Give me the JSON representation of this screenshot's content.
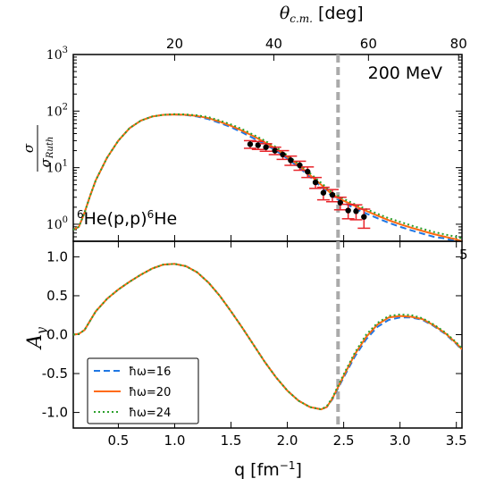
{
  "chart_data": [
    {
      "type": "line",
      "panel": "top",
      "x_bottom_unit": "q [fm⁻¹]",
      "x_top_label_symbol": "θ",
      "x_top_label_sub": "c.m.",
      "x_top_label_unit": "[deg]",
      "x_top_ticks": [
        20,
        40,
        60,
        80
      ],
      "x_top_tick_q": [
        1.0,
        1.88,
        2.72,
        3.52
      ],
      "ylabel_num": "σ",
      "ylabel_den": "σ",
      "ylabel_den_sub": "Ruth",
      "yscale": "log",
      "ylim": [
        0.5,
        1000
      ],
      "y_ticks": [
        {
          "value": 1,
          "base": "10",
          "exp": "0"
        },
        {
          "value": 10,
          "base": "10",
          "exp": "1"
        },
        {
          "value": 100,
          "base": "10",
          "exp": "2"
        },
        {
          "value": 1000,
          "base": "10",
          "exp": "3"
        }
      ],
      "xlim": [
        0.1,
        3.55
      ],
      "energy_label": "200 MeV",
      "reaction_label": {
        "pre": "6",
        "a": "He(p,p)",
        "mid": "6",
        "b": "He"
      },
      "right_edge_tick_label": "5",
      "vertical_marker_q": 2.45,
      "series": [
        {
          "hw": 16,
          "x": [
            0.1,
            0.15,
            0.2,
            0.25,
            0.3,
            0.4,
            0.5,
            0.6,
            0.7,
            0.8,
            0.9,
            1.0,
            1.1,
            1.2,
            1.3,
            1.4,
            1.5,
            1.6,
            1.7,
            1.8,
            1.9,
            2.0,
            2.1,
            2.2,
            2.3,
            2.4,
            2.5,
            2.6,
            2.7,
            2.8,
            2.9,
            3.0,
            3.1,
            3.2,
            3.3,
            3.4,
            3.5,
            3.55
          ],
          "y": [
            0.8,
            0.9,
            1.6,
            3.2,
            6.0,
            15,
            30,
            50,
            68,
            80,
            86,
            87,
            85,
            80,
            72,
            62,
            52,
            42,
            33,
            26,
            20,
            14.5,
            10.2,
            6.9,
            4.6,
            3.1,
            2.4,
            1.9,
            1.55,
            1.28,
            1.06,
            0.9,
            0.78,
            0.68,
            0.6,
            0.56,
            0.5,
            0.47
          ]
        },
        {
          "hw": 20,
          "x": [
            0.1,
            0.15,
            0.2,
            0.25,
            0.3,
            0.4,
            0.5,
            0.6,
            0.7,
            0.8,
            0.9,
            1.0,
            1.1,
            1.2,
            1.3,
            1.4,
            1.5,
            1.6,
            1.7,
            1.8,
            1.9,
            2.0,
            2.1,
            2.2,
            2.3,
            2.4,
            2.5,
            2.6,
            2.7,
            2.8,
            2.9,
            3.0,
            3.1,
            3.2,
            3.3,
            3.4,
            3.5,
            3.55
          ],
          "y": [
            0.8,
            0.9,
            1.6,
            3.2,
            6.0,
            15,
            30,
            50,
            68,
            80,
            86,
            87,
            86,
            82,
            75,
            65,
            55,
            45,
            36,
            28,
            21.5,
            15.5,
            11,
            7.4,
            5.0,
            3.35,
            2.6,
            2.1,
            1.72,
            1.42,
            1.18,
            1.0,
            0.87,
            0.76,
            0.67,
            0.6,
            0.54,
            0.5
          ]
        },
        {
          "hw": 24,
          "x": [
            0.1,
            0.15,
            0.2,
            0.25,
            0.3,
            0.4,
            0.5,
            0.6,
            0.7,
            0.8,
            0.9,
            1.0,
            1.1,
            1.2,
            1.3,
            1.4,
            1.5,
            1.6,
            1.7,
            1.8,
            1.9,
            2.0,
            2.1,
            2.2,
            2.3,
            2.4,
            2.5,
            2.6,
            2.7,
            2.8,
            2.9,
            3.0,
            3.1,
            3.2,
            3.3,
            3.4,
            3.5,
            3.55
          ],
          "y": [
            0.8,
            0.9,
            1.6,
            3.2,
            6.0,
            15,
            30,
            50,
            68,
            80,
            86,
            88,
            87,
            84,
            78,
            68,
            58,
            48,
            38,
            30,
            23,
            16.5,
            11.8,
            8.0,
            5.4,
            3.6,
            2.8,
            2.25,
            1.85,
            1.53,
            1.28,
            1.1,
            0.95,
            0.83,
            0.73,
            0.66,
            0.6,
            0.56
          ]
        }
      ],
      "experimental": {
        "x": [
          1.67,
          1.74,
          1.81,
          1.89,
          1.96,
          2.03,
          2.11,
          2.18,
          2.25,
          2.32,
          2.4,
          2.47,
          2.54,
          2.61,
          2.68
        ],
        "y": [
          26,
          25,
          23,
          20,
          17,
          13.5,
          11,
          8.5,
          5.5,
          3.6,
          3.3,
          2.4,
          1.75,
          1.7,
          1.35
        ],
        "yerr": [
          4,
          4,
          3.5,
          3,
          3,
          2.5,
          2,
          1.8,
          1.2,
          0.9,
          0.8,
          0.6,
          0.5,
          0.5,
          0.5
        ]
      }
    },
    {
      "type": "line",
      "panel": "bottom",
      "xlabel_base": "q [fm",
      "xlabel_exp": "−1",
      "xlabel_end": "]",
      "x_ticks": [
        "0.5",
        "1.0",
        "1.5",
        "2.0",
        "2.5",
        "3.0",
        "3.5"
      ],
      "x_tick_values": [
        0.5,
        1.0,
        1.5,
        2.0,
        2.5,
        3.0,
        3.5
      ],
      "ylabel": "A",
      "ylabel_sub": "y",
      "ylim": [
        -1.2,
        1.2
      ],
      "y_ticks": [
        "1.0",
        "0.5",
        "0.0",
        "-0.5",
        "-1.0"
      ],
      "y_tick_values": [
        1.0,
        0.5,
        0.0,
        -0.5,
        -1.0
      ],
      "xlim": [
        0.1,
        3.55
      ],
      "vertical_marker_q": 2.45,
      "legend": {
        "placement": "lower-left",
        "entries": [
          {
            "label": "ħω=16",
            "color": "#1f77e4",
            "style": "dashed"
          },
          {
            "label": "ħω=20",
            "color": "#ff6a10",
            "style": "solid"
          },
          {
            "label": "ħω=24",
            "color": "#2ca02c",
            "style": "dotted"
          }
        ]
      },
      "series": [
        {
          "hw": 16,
          "x": [
            0.1,
            0.15,
            0.2,
            0.25,
            0.3,
            0.4,
            0.5,
            0.6,
            0.7,
            0.8,
            0.9,
            1.0,
            1.1,
            1.2,
            1.3,
            1.4,
            1.5,
            1.6,
            1.7,
            1.8,
            1.9,
            2.0,
            2.1,
            2.2,
            2.3,
            2.35,
            2.4,
            2.5,
            2.6,
            2.7,
            2.8,
            2.9,
            3.0,
            3.1,
            3.2,
            3.3,
            3.4,
            3.5,
            3.55
          ],
          "y": [
            0.0,
            0.01,
            0.06,
            0.18,
            0.3,
            0.46,
            0.58,
            0.68,
            0.77,
            0.85,
            0.9,
            0.91,
            0.88,
            0.8,
            0.67,
            0.5,
            0.3,
            0.09,
            -0.13,
            -0.35,
            -0.55,
            -0.72,
            -0.85,
            -0.93,
            -0.96,
            -0.93,
            -0.83,
            -0.55,
            -0.28,
            -0.06,
            0.1,
            0.19,
            0.22,
            0.22,
            0.19,
            0.11,
            0.01,
            -0.12,
            -0.2
          ]
        },
        {
          "hw": 20,
          "x": [
            0.1,
            0.15,
            0.2,
            0.25,
            0.3,
            0.4,
            0.5,
            0.6,
            0.7,
            0.8,
            0.9,
            1.0,
            1.1,
            1.2,
            1.3,
            1.4,
            1.5,
            1.6,
            1.7,
            1.8,
            1.9,
            2.0,
            2.1,
            2.2,
            2.3,
            2.35,
            2.4,
            2.5,
            2.6,
            2.7,
            2.8,
            2.9,
            3.0,
            3.1,
            3.2,
            3.3,
            3.4,
            3.5,
            3.55
          ],
          "y": [
            0.0,
            0.01,
            0.06,
            0.18,
            0.3,
            0.46,
            0.58,
            0.68,
            0.77,
            0.85,
            0.9,
            0.91,
            0.88,
            0.8,
            0.67,
            0.5,
            0.3,
            0.09,
            -0.13,
            -0.35,
            -0.55,
            -0.72,
            -0.85,
            -0.93,
            -0.96,
            -0.93,
            -0.82,
            -0.53,
            -0.25,
            -0.03,
            0.13,
            0.22,
            0.24,
            0.23,
            0.2,
            0.12,
            0.02,
            -0.11,
            -0.19
          ]
        },
        {
          "hw": 24,
          "x": [
            0.1,
            0.15,
            0.2,
            0.25,
            0.3,
            0.4,
            0.5,
            0.6,
            0.7,
            0.8,
            0.9,
            1.0,
            1.1,
            1.2,
            1.3,
            1.4,
            1.5,
            1.6,
            1.7,
            1.8,
            1.9,
            2.0,
            2.1,
            2.2,
            2.3,
            2.35,
            2.4,
            2.5,
            2.6,
            2.7,
            2.8,
            2.9,
            3.0,
            3.1,
            3.2,
            3.3,
            3.4,
            3.5,
            3.55
          ],
          "y": [
            0.0,
            0.01,
            0.06,
            0.18,
            0.3,
            0.46,
            0.58,
            0.68,
            0.77,
            0.85,
            0.9,
            0.91,
            0.88,
            0.8,
            0.67,
            0.5,
            0.3,
            0.09,
            -0.13,
            -0.35,
            -0.55,
            -0.72,
            -0.85,
            -0.93,
            -0.96,
            -0.92,
            -0.81,
            -0.51,
            -0.23,
            0.0,
            0.15,
            0.24,
            0.26,
            0.25,
            0.21,
            0.13,
            0.03,
            -0.1,
            -0.18
          ]
        }
      ]
    }
  ]
}
